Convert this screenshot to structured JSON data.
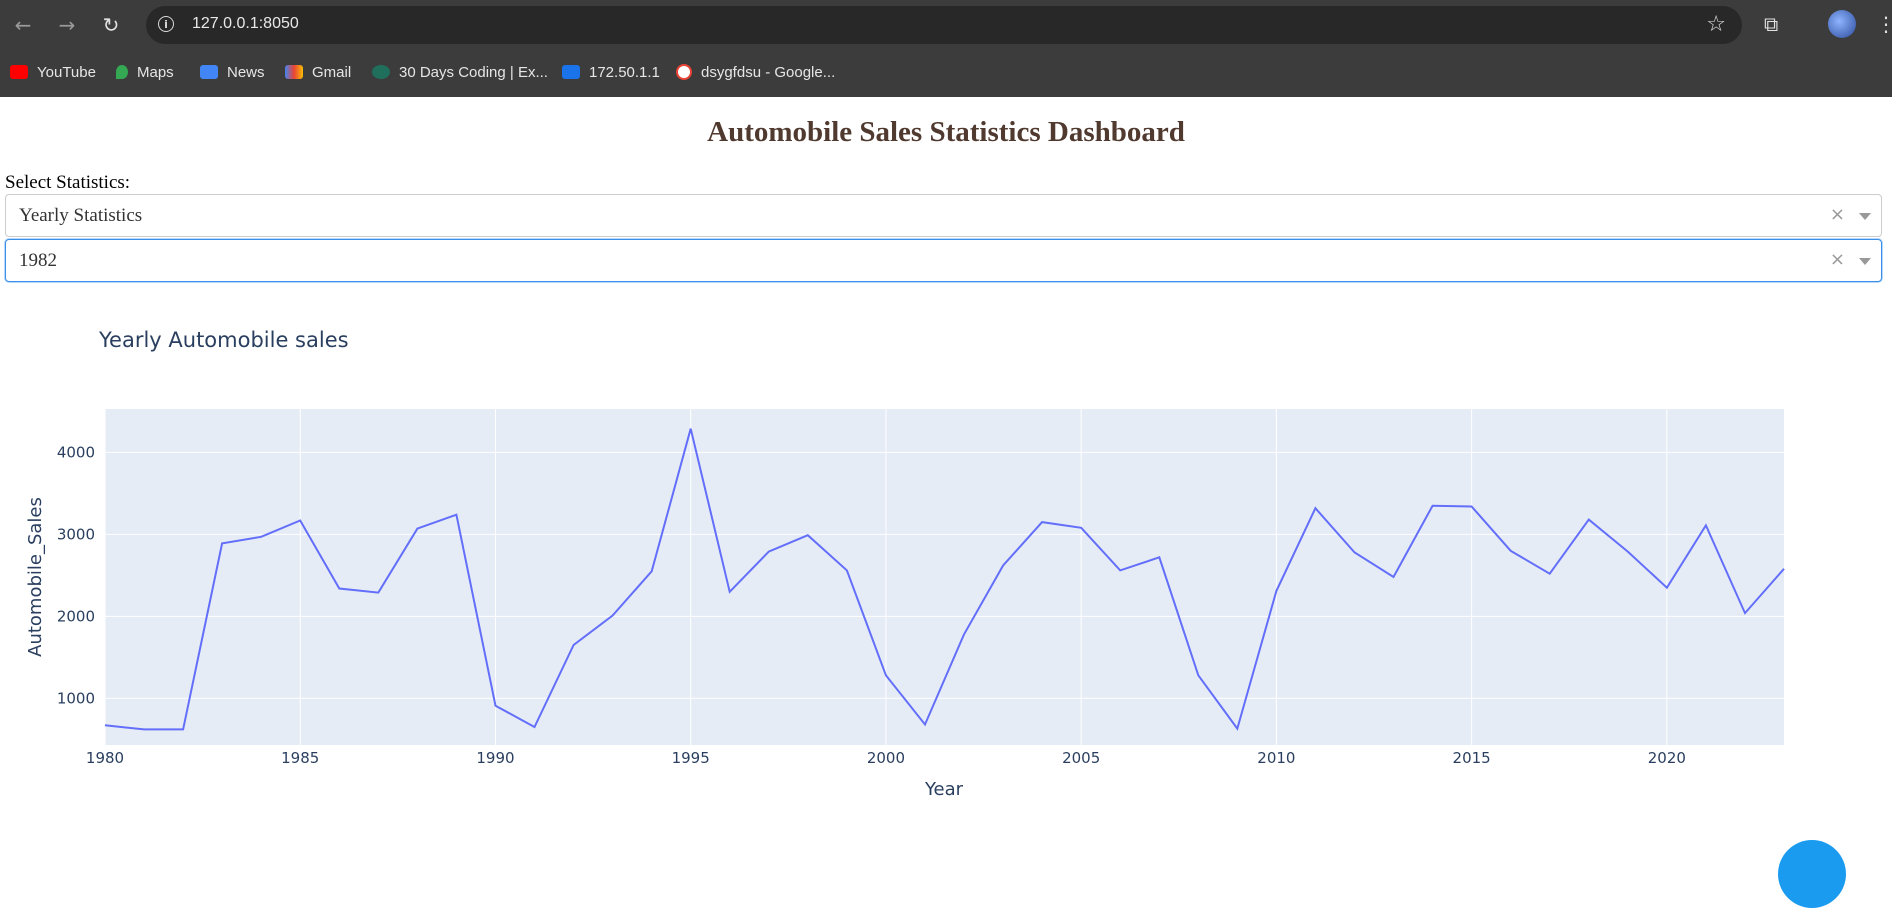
{
  "browser": {
    "url": "127.0.0.1:8050",
    "bookmarks": [
      {
        "label": "YouTube",
        "icon": "youtube-icon",
        "color": "#ff0000"
      },
      {
        "label": "Maps",
        "icon": "maps-icon",
        "color": "#34a853"
      },
      {
        "label": "News",
        "icon": "news-icon",
        "color": "#4285f4"
      },
      {
        "label": "Gmail",
        "icon": "gmail-icon",
        "color": "#ea4335"
      },
      {
        "label": "30 Days Coding | Ex...",
        "icon": "30-days-icon",
        "color": "#1f6f5c"
      },
      {
        "label": "172.50.1.1",
        "icon": "s-icon",
        "color": "#1a73e8"
      },
      {
        "label": "dsygfdsu - Google...",
        "icon": "google-icon",
        "color": "#ffffff"
      }
    ]
  },
  "page": {
    "title": "Automobile Sales Statistics Dashboard",
    "select_label": "Select Statistics:",
    "dropdown_statistics": {
      "value": "Yearly Statistics",
      "clear": "×"
    },
    "dropdown_year": {
      "value": "1982",
      "clear": "×"
    }
  },
  "chart_data": {
    "type": "line",
    "title": "Yearly Automobile sales",
    "xlabel": "Year",
    "ylabel": "Automobile_Sales",
    "xlim": [
      1980,
      2023
    ],
    "ylim": [
      430,
      4530
    ],
    "xticks": [
      1980,
      1985,
      1990,
      1995,
      2000,
      2005,
      2010,
      2015,
      2020
    ],
    "yticks": [
      1000,
      2000,
      3000,
      4000
    ],
    "grid": true,
    "line_color": "#636efa",
    "plot_bg": "#e5ecf6",
    "x": [
      1980,
      1981,
      1982,
      1983,
      1984,
      1985,
      1986,
      1987,
      1988,
      1989,
      1990,
      1991,
      1992,
      1993,
      1994,
      1995,
      1996,
      1997,
      1998,
      1999,
      2000,
      2001,
      2002,
      2003,
      2004,
      2005,
      2006,
      2007,
      2008,
      2009,
      2010,
      2011,
      2012,
      2013,
      2014,
      2015,
      2016,
      2017,
      2018,
      2019,
      2020,
      2021,
      2022,
      2023
    ],
    "y": [
      670,
      620,
      620,
      2890,
      2970,
      3170,
      2340,
      2290,
      3070,
      3240,
      910,
      650,
      1650,
      2010,
      2550,
      4290,
      2300,
      2790,
      2990,
      2560,
      1280,
      680,
      1780,
      2620,
      3150,
      3080,
      2560,
      2720,
      1280,
      630,
      2310,
      3320,
      2780,
      2480,
      3350,
      3340,
      2800,
      2520,
      3180,
      2790,
      2350,
      3110,
      2040,
      2580
    ]
  }
}
